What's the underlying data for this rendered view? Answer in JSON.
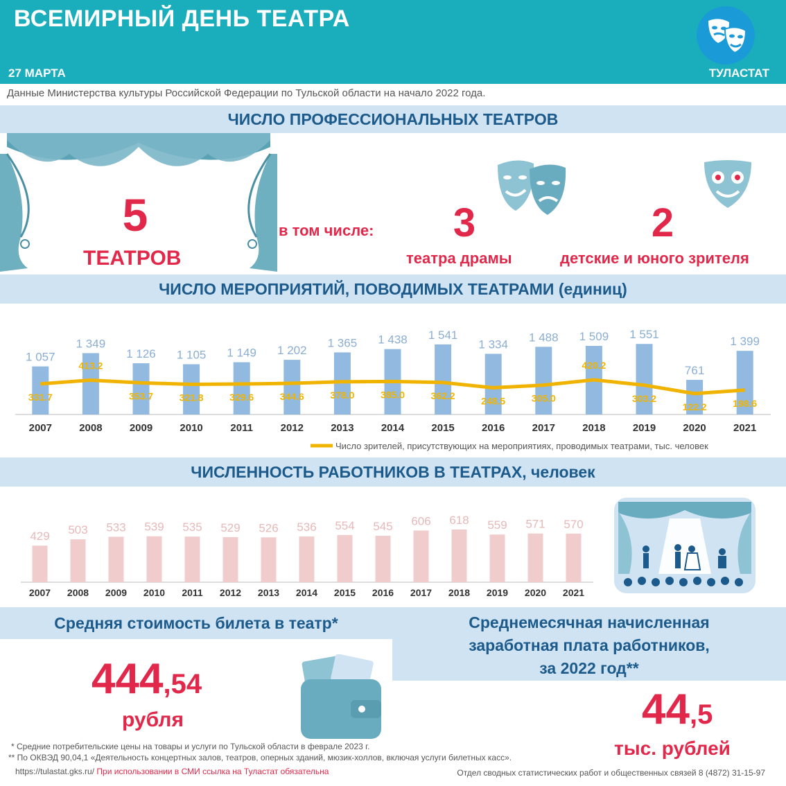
{
  "header": {
    "title": "ВСЕМИРНЫЙ ДЕНЬ ТЕАТРА",
    "date": "27 МАРТА",
    "brand": "ТУЛАСТАТ",
    "bg_color": "#1aaebc"
  },
  "source": "Данные Министерства культуры Российской Федерации по  Тульской области на начало 2022 года.",
  "theatres": {
    "heading": "ЧИСЛО ПРОФЕССИОНАЛЬНЫХ ТЕАТРОВ",
    "total_value": "5",
    "total_label": "ТЕАТРОВ",
    "including_label": "в том числе:",
    "drama_value": "3",
    "drama_label": "театра  драмы",
    "youth_value": "2",
    "youth_label": "детские  и юного зрителя"
  },
  "events_section": {
    "heading": "ЧИСЛО МЕРОПРИЯТИЙ, ПОВОДИМЫХ ТЕАТРАМИ (единиц)"
  },
  "workers_section": {
    "heading": "ЧИСЛЕННОСТЬ  РАБОТНИКОВ  В ТЕАТРАХ, человек"
  },
  "ticket": {
    "heading": "Средняя стоимость билета в театр*",
    "value_int": "444",
    "value_dec": ",54",
    "unit": "рубля"
  },
  "salary": {
    "heading_line1": "Среднемесячная начисленная",
    "heading_line2": "заработная плата работников,",
    "heading_line3": "за 2022 год**",
    "value_int": "44",
    "value_dec": ",5",
    "unit": "тыс. рублей"
  },
  "notes": {
    "note1": "*  Средние  потребительские  цены на товары  и услуги по Тульской  области  в феврале  2023 г.",
    "note2": "**  По ОКВЭД 90,04,1 «Деятельность  концертных  залов,  театров,  оперных  зданий,  мюзик-холлов,  включая услуги билетных  касс».",
    "url": "https://tulastat.gks.ru/",
    "smi": "При использовании  в СМИ ссылка на Туластат  обязательна",
    "dept": "Отдел  сводных  статистических  работ  и общественных  связей  8  (4872)  31-15-97"
  },
  "colors": {
    "accent_red": "#e1284a",
    "band_blue": "#cfe3f3",
    "bar_blue": "#92b9df",
    "line_gold": "#f0b400",
    "bar_pink": "#f0cccc"
  },
  "chart_data": [
    {
      "type": "bar",
      "title": "ЧИСЛО МЕРОПРИЯТИЙ, ПОВОДИМЫХ ТЕАТРАМИ (единиц)",
      "categories": [
        "2007",
        "2008",
        "2009",
        "2010",
        "2011",
        "2012",
        "2013",
        "2014",
        "2015",
        "2016",
        "2017",
        "2018",
        "2019",
        "2020",
        "2021"
      ],
      "series": [
        {
          "values": [
            1057,
            1349,
            1126,
            1105,
            1149,
            1202,
            1365,
            1438,
            1541,
            1334,
            1488,
            1509,
            1551,
            761,
            1399
          ],
          "labels": [
            "1 057",
            "1 349",
            "1 126",
            "1 105",
            "1 149",
            "1 202",
            "1 365",
            "1 438",
            "1 541",
            "1 334",
            "1 488",
            "1 509",
            "1 551",
            "761",
            "1 399"
          ]
        },
        {
          "name": "Число зрителей, присутствующих на мероприятиях, проводимых театрами, тыс. человек",
          "type": "line",
          "values": [
            331.7,
            413.2,
            353.7,
            321.8,
            329.6,
            344.6,
            378.0,
            385.0,
            362.2,
            248.5,
            305.0,
            420.2,
            303.2,
            122.2,
            198.6
          ],
          "labels": [
            "331.7",
            "413.2",
            "353.7",
            "321.8",
            "329.6",
            "344.6",
            "378.0",
            "385.0",
            "362.2",
            "248.5",
            "305.0",
            "420.2",
            "303.2",
            "122.2",
            "198.6"
          ]
        }
      ],
      "legend_position": "bottom-right"
    },
    {
      "type": "bar",
      "title": "ЧИСЛЕННОСТЬ  РАБОТНИКОВ  В ТЕАТРАХ, человек",
      "categories": [
        "2007",
        "2008",
        "2009",
        "2010",
        "2011",
        "2012",
        "2013",
        "2014",
        "2015",
        "2016",
        "2017",
        "2018",
        "2019",
        "2020",
        "2021"
      ],
      "values": [
        429,
        503,
        533,
        539,
        535,
        529,
        526,
        536,
        554,
        545,
        606,
        618,
        559,
        571,
        570
      ]
    }
  ]
}
